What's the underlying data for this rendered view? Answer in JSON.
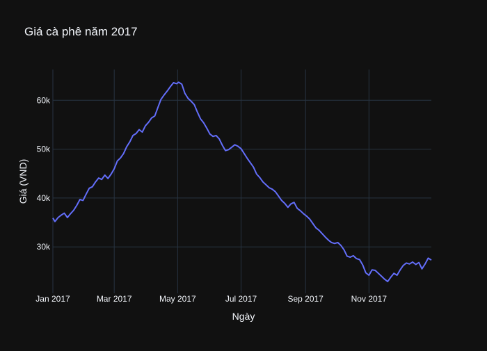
{
  "chart_data": {
    "type": "line",
    "title": "Giá cà phê năm 2017",
    "xlabel": "Ngày",
    "ylabel": "Giá (VND)",
    "xlim": [
      "2017-01-01",
      "2017-12-31"
    ],
    "ylim": [
      20500,
      66300
    ],
    "grid": true,
    "x_ticks": [
      {
        "date": "2017-01-01",
        "label": "Jan 2017"
      },
      {
        "date": "2017-03-01",
        "label": "Mar 2017"
      },
      {
        "date": "2017-05-01",
        "label": "May 2017"
      },
      {
        "date": "2017-07-01",
        "label": "Jul 2017"
      },
      {
        "date": "2017-09-01",
        "label": "Sep 2017"
      },
      {
        "date": "2017-11-01",
        "label": "Nov 2017"
      }
    ],
    "y_ticks": [
      {
        "value": 30000,
        "label": "30k"
      },
      {
        "value": 40000,
        "label": "40k"
      },
      {
        "value": 50000,
        "label": "50k"
      },
      {
        "value": 60000,
        "label": "60k"
      }
    ],
    "series": [
      {
        "color": "#636efa",
        "points": [
          [
            "2017-01-01",
            35900
          ],
          [
            "2017-01-03",
            35200
          ],
          [
            "2017-01-06",
            36000
          ],
          [
            "2017-01-09",
            36500
          ],
          [
            "2017-01-12",
            36900
          ],
          [
            "2017-01-15",
            36000
          ],
          [
            "2017-01-18",
            36800
          ],
          [
            "2017-01-21",
            37500
          ],
          [
            "2017-01-24",
            38500
          ],
          [
            "2017-01-27",
            39700
          ],
          [
            "2017-01-30",
            39500
          ],
          [
            "2017-02-02",
            40800
          ],
          [
            "2017-02-05",
            42000
          ],
          [
            "2017-02-08",
            42300
          ],
          [
            "2017-02-11",
            43300
          ],
          [
            "2017-02-14",
            44100
          ],
          [
            "2017-02-17",
            43800
          ],
          [
            "2017-02-20",
            44700
          ],
          [
            "2017-02-23",
            44000
          ],
          [
            "2017-02-26",
            44900
          ],
          [
            "2017-03-01",
            46000
          ],
          [
            "2017-03-04",
            47600
          ],
          [
            "2017-03-07",
            48200
          ],
          [
            "2017-03-10",
            49100
          ],
          [
            "2017-03-13",
            50500
          ],
          [
            "2017-03-16",
            51500
          ],
          [
            "2017-03-19",
            52800
          ],
          [
            "2017-03-22",
            53200
          ],
          [
            "2017-03-25",
            54000
          ],
          [
            "2017-03-28",
            53500
          ],
          [
            "2017-03-31",
            54800
          ],
          [
            "2017-04-03",
            55500
          ],
          [
            "2017-04-06",
            56400
          ],
          [
            "2017-04-09",
            56800
          ],
          [
            "2017-04-12",
            58500
          ],
          [
            "2017-04-15",
            60200
          ],
          [
            "2017-04-18",
            61100
          ],
          [
            "2017-04-21",
            61900
          ],
          [
            "2017-04-24",
            62800
          ],
          [
            "2017-04-27",
            63600
          ],
          [
            "2017-04-30",
            63400
          ],
          [
            "2017-05-02",
            63700
          ],
          [
            "2017-05-05",
            63300
          ],
          [
            "2017-05-08",
            61400
          ],
          [
            "2017-05-11",
            60400
          ],
          [
            "2017-05-14",
            59800
          ],
          [
            "2017-05-17",
            59100
          ],
          [
            "2017-05-20",
            57600
          ],
          [
            "2017-05-23",
            56200
          ],
          [
            "2017-05-26",
            55400
          ],
          [
            "2017-05-29",
            54300
          ],
          [
            "2017-06-01",
            53100
          ],
          [
            "2017-06-04",
            52600
          ],
          [
            "2017-06-07",
            52800
          ],
          [
            "2017-06-10",
            52100
          ],
          [
            "2017-06-13",
            50800
          ],
          [
            "2017-06-16",
            49700
          ],
          [
            "2017-06-19",
            49900
          ],
          [
            "2017-06-22",
            50400
          ],
          [
            "2017-06-25",
            50900
          ],
          [
            "2017-06-28",
            50600
          ],
          [
            "2017-07-01",
            50100
          ],
          [
            "2017-07-04",
            49100
          ],
          [
            "2017-07-07",
            48100
          ],
          [
            "2017-07-10",
            47200
          ],
          [
            "2017-07-13",
            46300
          ],
          [
            "2017-07-16",
            44900
          ],
          [
            "2017-07-19",
            44200
          ],
          [
            "2017-07-22",
            43300
          ],
          [
            "2017-07-25",
            42700
          ],
          [
            "2017-07-28",
            42100
          ],
          [
            "2017-07-31",
            41800
          ],
          [
            "2017-08-03",
            41300
          ],
          [
            "2017-08-06",
            40400
          ],
          [
            "2017-08-09",
            39500
          ],
          [
            "2017-08-12",
            38900
          ],
          [
            "2017-08-15",
            38100
          ],
          [
            "2017-08-18",
            38800
          ],
          [
            "2017-08-21",
            39100
          ],
          [
            "2017-08-24",
            37900
          ],
          [
            "2017-08-27",
            37400
          ],
          [
            "2017-08-30",
            36800
          ],
          [
            "2017-09-02",
            36300
          ],
          [
            "2017-09-05",
            35700
          ],
          [
            "2017-09-08",
            34800
          ],
          [
            "2017-09-11",
            33900
          ],
          [
            "2017-09-14",
            33400
          ],
          [
            "2017-09-17",
            32700
          ],
          [
            "2017-09-20",
            32000
          ],
          [
            "2017-09-23",
            31400
          ],
          [
            "2017-09-26",
            30900
          ],
          [
            "2017-09-29",
            30700
          ],
          [
            "2017-10-02",
            30900
          ],
          [
            "2017-10-05",
            30300
          ],
          [
            "2017-10-08",
            29400
          ],
          [
            "2017-10-11",
            28100
          ],
          [
            "2017-10-14",
            27900
          ],
          [
            "2017-10-17",
            28200
          ],
          [
            "2017-10-20",
            27600
          ],
          [
            "2017-10-23",
            27400
          ],
          [
            "2017-10-26",
            26300
          ],
          [
            "2017-10-29",
            24700
          ],
          [
            "2017-11-01",
            24200
          ],
          [
            "2017-11-04",
            25300
          ],
          [
            "2017-11-07",
            25200
          ],
          [
            "2017-11-10",
            24600
          ],
          [
            "2017-11-13",
            24000
          ],
          [
            "2017-11-16",
            23400
          ],
          [
            "2017-11-19",
            22900
          ],
          [
            "2017-11-22",
            23800
          ],
          [
            "2017-11-25",
            24600
          ],
          [
            "2017-11-28",
            24200
          ],
          [
            "2017-12-01",
            25300
          ],
          [
            "2017-12-04",
            26200
          ],
          [
            "2017-12-07",
            26700
          ],
          [
            "2017-12-10",
            26500
          ],
          [
            "2017-12-13",
            26900
          ],
          [
            "2017-12-16",
            26400
          ],
          [
            "2017-12-19",
            26800
          ],
          [
            "2017-12-22",
            25500
          ],
          [
            "2017-12-25",
            26500
          ],
          [
            "2017-12-28",
            27700
          ],
          [
            "2017-12-31",
            27300
          ]
        ]
      }
    ]
  }
}
